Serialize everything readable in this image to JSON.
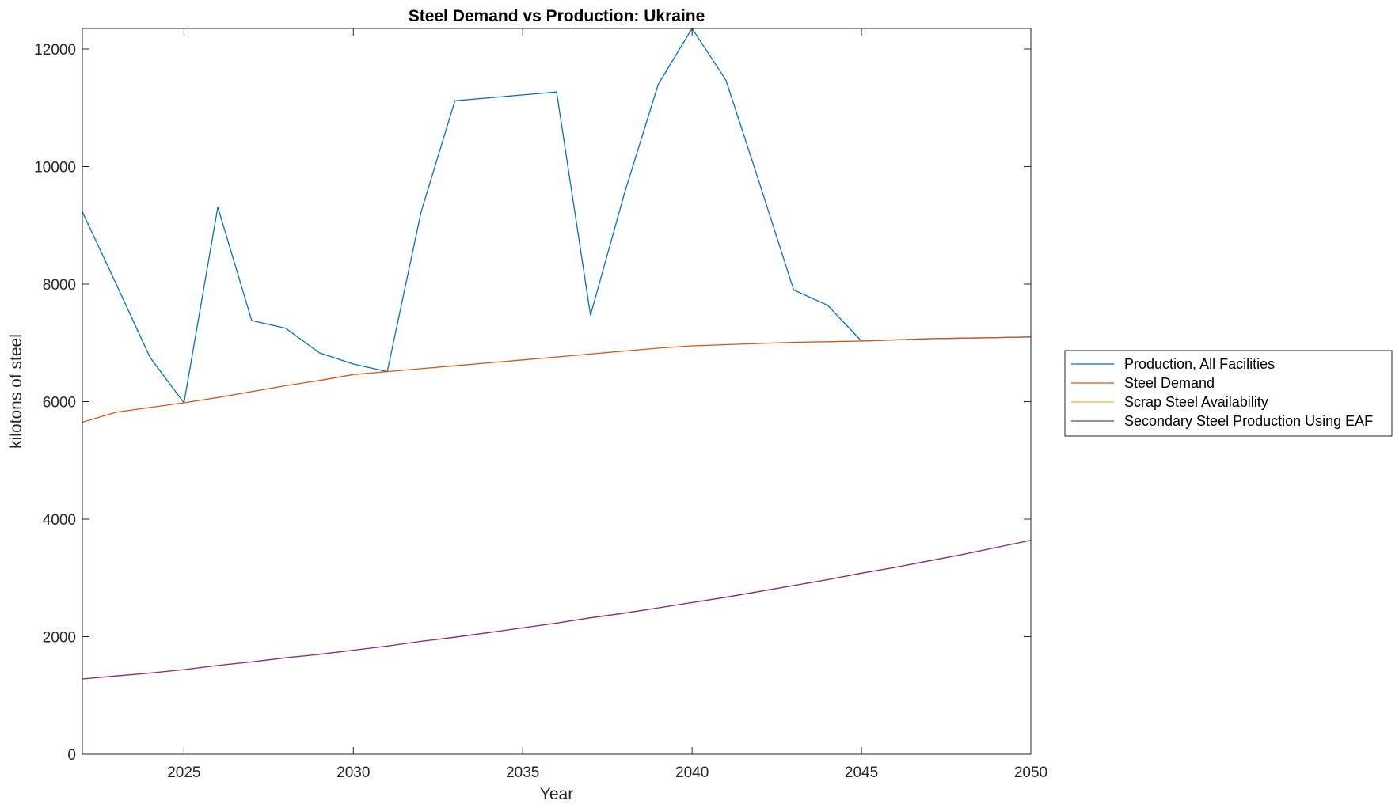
{
  "chart_data": {
    "type": "line",
    "title": "Steel Demand vs Production: Ukraine",
    "xlabel": "Year",
    "ylabel": "kilotons of steel",
    "xlim": [
      2022,
      2050
    ],
    "ylim": [
      0,
      12350
    ],
    "xticks": [
      2025,
      2030,
      2035,
      2040,
      2045,
      2050
    ],
    "yticks": [
      0,
      2000,
      4000,
      6000,
      8000,
      10000,
      12000
    ],
    "grid": false,
    "legend_position": "outside-right",
    "x": [
      2022,
      2023,
      2024,
      2025,
      2026,
      2027,
      2028,
      2029,
      2030,
      2031,
      2032,
      2033,
      2034,
      2035,
      2036,
      2037,
      2038,
      2039,
      2040,
      2041,
      2042,
      2043,
      2044,
      2045,
      2046,
      2047,
      2048,
      2049,
      2050
    ],
    "series": [
      {
        "name": "Production, All Facilities",
        "color": "#0072BD",
        "values": [
          9230,
          8000,
          6750,
          5980,
          9310,
          7380,
          7250,
          6830,
          6640,
          6510,
          9230,
          11120,
          11170,
          11220,
          11270,
          7470,
          9540,
          11400,
          12350,
          11470,
          9700,
          7900,
          7640,
          7030,
          7050,
          7070,
          7080,
          7090,
          7100
        ]
      },
      {
        "name": "Steel Demand",
        "color": "#D95319",
        "values": [
          5650,
          5820,
          5900,
          5980,
          6070,
          6170,
          6270,
          6360,
          6460,
          6510,
          6560,
          6610,
          6660,
          6710,
          6760,
          6810,
          6860,
          6910,
          6950,
          6970,
          6990,
          7010,
          7020,
          7030,
          7050,
          7070,
          7080,
          7090,
          7100
        ]
      },
      {
        "name": "Scrap Steel Availability",
        "color": "#EDB120",
        "values": [
          1280,
          1330,
          1380,
          1440,
          1510,
          1570,
          1640,
          1700,
          1770,
          1840,
          1920,
          1990,
          2070,
          2150,
          2230,
          2320,
          2400,
          2490,
          2580,
          2670,
          2770,
          2870,
          2970,
          3080,
          3180,
          3290,
          3400,
          3520,
          3640
        ]
      },
      {
        "name": "Secondary Steel Production Using EAF",
        "color": "#7E2F8E",
        "values": [
          1280,
          1330,
          1380,
          1440,
          1510,
          1570,
          1640,
          1700,
          1770,
          1840,
          1920,
          1990,
          2070,
          2150,
          2230,
          2320,
          2400,
          2490,
          2580,
          2670,
          2770,
          2870,
          2970,
          3080,
          3180,
          3290,
          3400,
          3520,
          3640
        ]
      }
    ]
  }
}
